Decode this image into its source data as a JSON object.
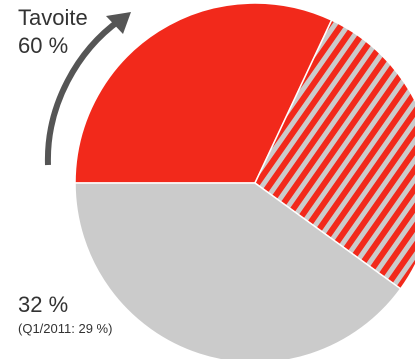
{
  "chart_data": {
    "type": "pie",
    "values": {
      "current_percent": 32,
      "target_percent": 60,
      "previous_percent": 29
    },
    "labels": {
      "target_title": "Tavoite",
      "target_value": "60 %",
      "current_value": "32 %",
      "previous_note": "(Q1/2011: 29 %)"
    },
    "colors": {
      "current": "#f2291b",
      "target_hatch": "#f2291b",
      "remainder": "#cbcbcb",
      "hatch_stripe": "#cbcbcb",
      "arrow": "#555555",
      "separator": "#ffffff"
    }
  }
}
